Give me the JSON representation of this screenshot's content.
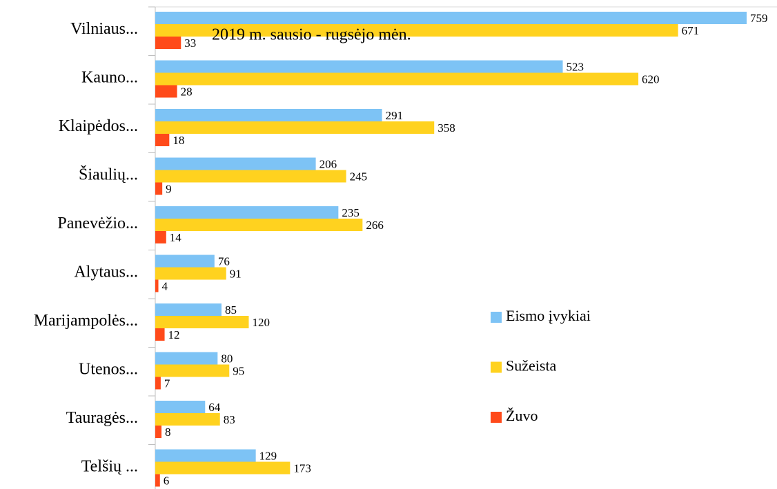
{
  "chart_data": {
    "type": "bar",
    "orientation": "horizontal",
    "title": "2019 m. sausio - rugsėjo mėn.",
    "categories": [
      "Vilniaus...",
      "Kauno...",
      "Klaipėdos...",
      "Šiaulių...",
      "Panevėžio...",
      "Alytaus...",
      "Marijampolės...",
      "Utenos...",
      "Tauragės...",
      "Telšių ..."
    ],
    "series": [
      {
        "name": "Eismo įvykiai",
        "color": "#7dc3f5",
        "values": [
          759,
          523,
          291,
          206,
          235,
          76,
          85,
          80,
          64,
          129
        ]
      },
      {
        "name": "Sužeista",
        "color": "#ffd21f",
        "values": [
          671,
          620,
          358,
          245,
          266,
          91,
          120,
          95,
          83,
          173
        ]
      },
      {
        "name": "Žuvo",
        "color": "#ff4a1a",
        "values": [
          33,
          28,
          18,
          9,
          14,
          4,
          12,
          7,
          8,
          6
        ]
      }
    ],
    "legend": "right"
  }
}
